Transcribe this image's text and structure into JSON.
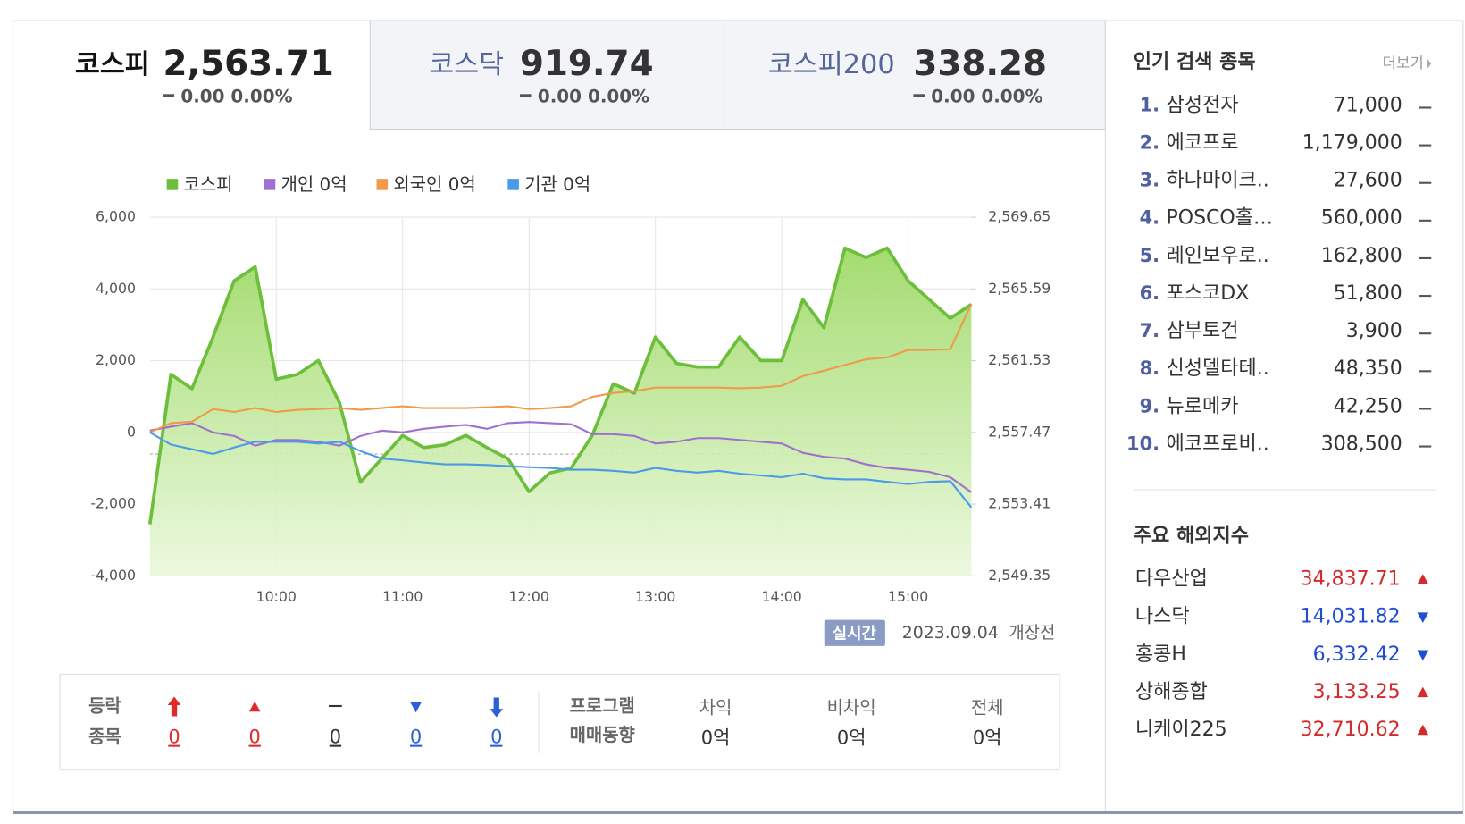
{
  "tabs": [
    {
      "name": "코스피",
      "value": "2,563.71",
      "change": "0.00 0.00%",
      "active": true
    },
    {
      "name": "코스닥",
      "value": "919.74",
      "change": "0.00 0.00%",
      "active": false
    },
    {
      "name": "코스피200",
      "value": "338.28",
      "change": "0.00 0.00%",
      "active": false
    }
  ],
  "chart_data": {
    "type": "line",
    "x": [
      "09:00",
      "09:10",
      "09:20",
      "09:30",
      "09:40",
      "09:50",
      "10:00",
      "10:10",
      "10:20",
      "10:30",
      "10:40",
      "10:50",
      "11:00",
      "11:10",
      "11:20",
      "11:30",
      "11:40",
      "11:50",
      "12:00",
      "12:10",
      "12:20",
      "12:30",
      "12:40",
      "12:50",
      "13:00",
      "13:10",
      "13:20",
      "13:30",
      "13:40",
      "13:50",
      "14:00",
      "14:10",
      "14:20",
      "14:30",
      "14:40",
      "14:50",
      "15:00",
      "15:10",
      "15:20",
      "15:30"
    ],
    "xticks": [
      "10:00",
      "11:00",
      "12:00",
      "13:00",
      "14:00",
      "15:00"
    ],
    "ylim": [
      -4000,
      6000
    ],
    "yticks": [
      {
        "value": -4000,
        "label": "-4,000"
      },
      {
        "value": -2000,
        "label": "-2,000"
      },
      0,
      {
        "value": 2000,
        "label": "2,000"
      },
      {
        "value": 4000,
        "label": "4,000"
      },
      {
        "value": 6000,
        "label": "6,000"
      }
    ],
    "y2lim": [
      2549.35,
      2569.65
    ],
    "y2ticks": [
      {
        "value": 2549.35,
        "label": "2,549.35"
      },
      {
        "value": 2553.41,
        "label": "2,553.41"
      },
      {
        "value": 2557.47,
        "label": "2,557.47"
      },
      {
        "value": 2561.53,
        "label": "2,561.53"
      },
      {
        "value": 2565.59,
        "label": "2,565.59"
      },
      {
        "value": 2569.65,
        "label": "2,569.65"
      }
    ],
    "grid": true,
    "reference_line": 2556.24,
    "series": [
      {
        "name": "코스피",
        "color": "#6cbf3a",
        "axis": "y2",
        "area": true,
        "values": [
          2552.27,
          2560.75,
          2559.95,
          2562.87,
          2566.05,
          2566.84,
          2560.48,
          2560.75,
          2561.54,
          2559.16,
          2554.65,
          2555.98,
          2557.3,
          2556.61,
          2556.77,
          2557.3,
          2556.61,
          2555.98,
          2554.12,
          2555.18,
          2555.45,
          2557.3,
          2560.22,
          2559.69,
          2562.87,
          2561.38,
          2561.17,
          2561.17,
          2562.87,
          2561.54,
          2561.54,
          2564.99,
          2563.4,
          2567.9,
          2567.37,
          2567.9,
          2566.05,
          2564.99,
          2563.93,
          2564.72
        ]
      },
      {
        "name": "개인 0억",
        "color": "#a070d0",
        "values": [
          50,
          160,
          260,
          0,
          -100,
          -370,
          -210,
          -210,
          -260,
          -370,
          -100,
          50,
          0,
          100,
          160,
          210,
          100,
          260,
          290,
          260,
          230,
          -50,
          -50,
          -100,
          -310,
          -260,
          -160,
          -160,
          -210,
          -260,
          -310,
          -570,
          -680,
          -730,
          -890,
          -990,
          -1040,
          -1100,
          -1250,
          -1670
        ]
      },
      {
        "name": "외국인 0억",
        "color": "#f09a4a",
        "values": [
          0,
          260,
          300,
          650,
          570,
          680,
          570,
          630,
          650,
          680,
          630,
          680,
          730,
          680,
          680,
          680,
          700,
          730,
          650,
          680,
          730,
          990,
          1100,
          1150,
          1250,
          1250,
          1250,
          1250,
          1230,
          1250,
          1300,
          1570,
          1720,
          1880,
          2040,
          2090,
          2300,
          2300,
          2320,
          3580
        ]
      },
      {
        "name": "기관 0억",
        "color": "#4a9ae8",
        "values": [
          0,
          -340,
          -470,
          -600,
          -420,
          -260,
          -260,
          -260,
          -310,
          -260,
          -520,
          -730,
          -780,
          -840,
          -890,
          -890,
          -910,
          -940,
          -970,
          -990,
          -1040,
          -1040,
          -1070,
          -1120,
          -990,
          -1070,
          -1120,
          -1070,
          -1150,
          -1200,
          -1250,
          -1150,
          -1280,
          -1310,
          -1310,
          -1380,
          -1440,
          -1380,
          -1360,
          -2090
        ]
      }
    ]
  },
  "status": {
    "badge": "실시간",
    "date": "2023.09.04",
    "state": "개장전"
  },
  "updown": {
    "label": [
      "등락",
      "종목"
    ],
    "items": [
      {
        "direction": "upper-limit",
        "count": 0
      },
      {
        "direction": "up",
        "count": 0
      },
      {
        "direction": "flat",
        "count": 0
      },
      {
        "direction": "down",
        "count": 0
      },
      {
        "direction": "lower-limit",
        "count": 0
      }
    ]
  },
  "program": {
    "label": [
      "프로그램",
      "매매동향"
    ],
    "items": [
      {
        "name": "차익",
        "value": "0억"
      },
      {
        "name": "비차익",
        "value": "0억"
      },
      {
        "name": "전체",
        "value": "0억"
      }
    ]
  },
  "popular": {
    "title": "인기 검색 종목",
    "more": "더보기",
    "items": [
      {
        "rank": "1.",
        "name": "삼성전자",
        "price": "71,000"
      },
      {
        "rank": "2.",
        "name": "에코프로",
        "price": "1,179,000"
      },
      {
        "rank": "3.",
        "name": "하나마이크..",
        "price": "27,600"
      },
      {
        "rank": "4.",
        "name": "POSCO홀…",
        "price": "560,000"
      },
      {
        "rank": "5.",
        "name": "레인보우로..",
        "price": "162,800"
      },
      {
        "rank": "6.",
        "name": "포스코DX",
        "price": "51,800"
      },
      {
        "rank": "7.",
        "name": "삼부토건",
        "price": "3,900"
      },
      {
        "rank": "8.",
        "name": "신성델타테..",
        "price": "48,350"
      },
      {
        "rank": "9.",
        "name": "뉴로메카",
        "price": "42,250"
      },
      {
        "rank": "10.",
        "name": "에코프로비..",
        "price": "308,500"
      }
    ]
  },
  "overseas": {
    "title": "주요 해외지수",
    "up_color": "#d42a2a",
    "down_color": "#1f4fd0",
    "items": [
      {
        "name": "다우산업",
        "value": "34,837.71",
        "direction": "up"
      },
      {
        "name": "나스닥",
        "value": "14,031.82",
        "direction": "down"
      },
      {
        "name": "홍콩H",
        "value": "6,332.42",
        "direction": "down"
      },
      {
        "name": "상해종합",
        "value": "3,133.25",
        "direction": "up"
      },
      {
        "name": "니케이225",
        "value": "32,710.62",
        "direction": "up"
      }
    ]
  }
}
